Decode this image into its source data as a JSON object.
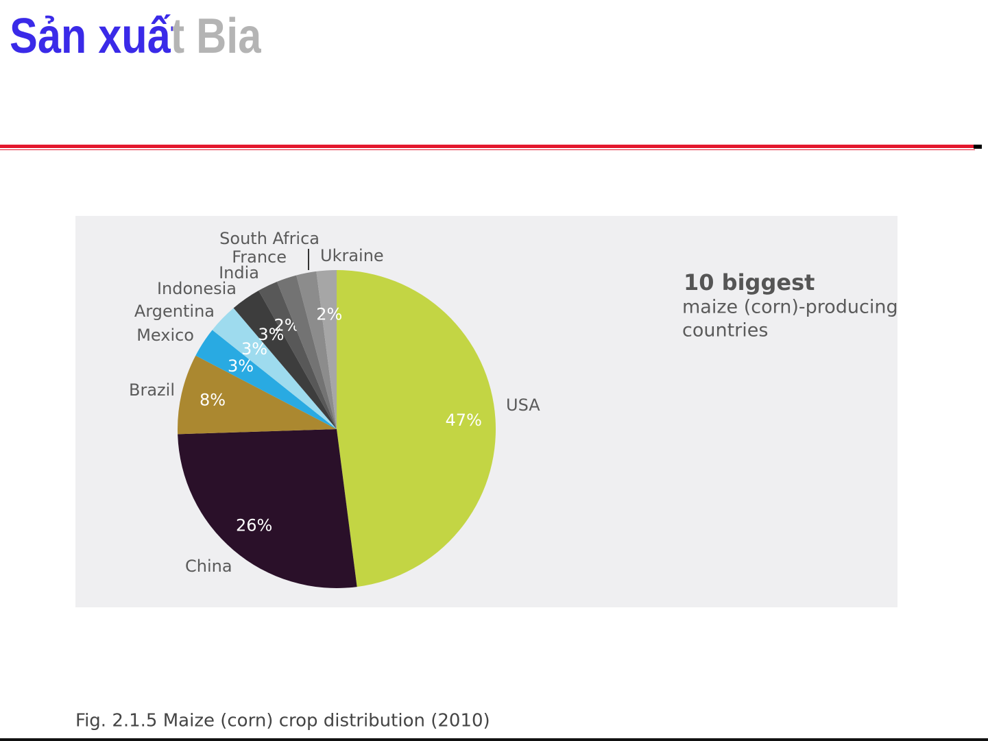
{
  "header": {
    "title": "Sản xuất Bia"
  },
  "chart_data": {
    "type": "pie",
    "categories": [
      "USA",
      "China",
      "Brazil",
      "Mexico",
      "Argentina",
      "Indonesia",
      "India",
      "France",
      "South Africa",
      "Ukraine"
    ],
    "values": [
      47,
      26,
      8,
      3,
      3,
      3,
      2,
      2,
      2,
      2
    ],
    "value_labels": [
      "47%",
      "26%",
      "8%",
      "3%",
      "3%",
      "3%",
      "2%",
      null,
      null,
      "2%"
    ],
    "colors": [
      "#c3d544",
      "#2a1029",
      "#ab8830",
      "#29aae2",
      "#9edbee",
      "#3d3d3d",
      "#585858",
      "#737373",
      "#8c8c8c",
      "#a6a6a6"
    ],
    "title": "10 biggest",
    "subtitle": [
      "maize (corn)-producing",
      "countries"
    ]
  },
  "caption": "Fig. 2.1.5 Maize (corn) crop distribution (2010)"
}
